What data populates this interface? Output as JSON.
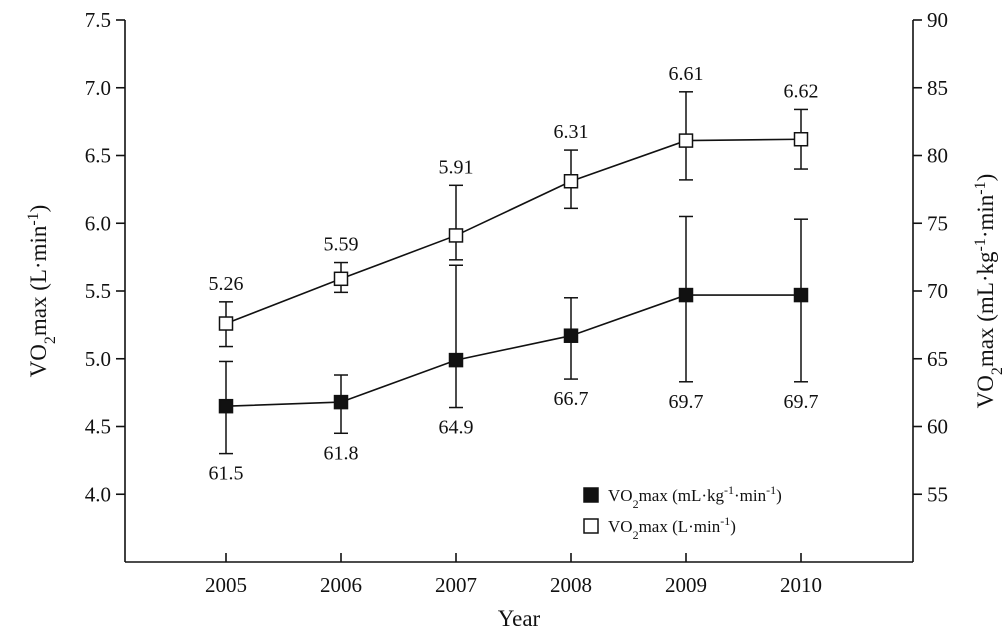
{
  "chart_data": {
    "type": "line",
    "xlabel": "Year",
    "ylabel_left": {
      "base": "VO",
      "sub": "2",
      "rest": "max (L·min",
      "sup": "-1",
      "end": ")"
    },
    "ylabel_right": {
      "base": "VO",
      "sub": "2",
      "rest": "max (mL·kg",
      "sup1": "-1",
      "mid": "·min",
      "sup2": "-1",
      "end": ")"
    },
    "x": [
      "2005",
      "2006",
      "2007",
      "2008",
      "2009",
      "2010"
    ],
    "ylim_left": [
      3.5,
      7.5
    ],
    "ylim_right": [
      50,
      90
    ],
    "yticks_left": [
      "4.0",
      "4.5",
      "5.0",
      "5.5",
      "6.0",
      "6.5",
      "7.0",
      "7.5"
    ],
    "yticks_right": [
      "55",
      "60",
      "65",
      "70",
      "75",
      "80",
      "85",
      "90"
    ],
    "grid": false,
    "legend_position": "bottom-right",
    "series": [
      {
        "id": "relative",
        "name": {
          "base": "VO",
          "sub": "2",
          "rest": "max (mL·kg",
          "sup1": "-1",
          "mid": "·min",
          "sup2": "-1",
          "end": ")"
        },
        "axis": "right",
        "marker": "filled-square",
        "values": [
          61.5,
          61.8,
          64.9,
          66.7,
          69.7,
          69.7
        ],
        "error_low": [
          58.0,
          59.5,
          61.4,
          63.5,
          63.3,
          63.3
        ],
        "error_high": [
          64.8,
          63.8,
          71.9,
          69.5,
          75.5,
          75.3
        ],
        "labels": [
          "61.5",
          "61.8",
          "64.9",
          "66.7",
          "69.7",
          "69.7"
        ],
        "label_position": "below"
      },
      {
        "id": "absolute",
        "name": {
          "base": "VO",
          "sub": "2",
          "rest": "max (L·min",
          "sup": "-1",
          "end": ")"
        },
        "axis": "left",
        "marker": "open-square",
        "values": [
          5.26,
          5.59,
          5.91,
          6.31,
          6.61,
          6.62
        ],
        "error_low": [
          5.09,
          5.49,
          5.73,
          6.11,
          6.32,
          6.4
        ],
        "error_high": [
          5.42,
          5.71,
          6.28,
          6.54,
          6.97,
          6.84
        ],
        "labels": [
          "5.26",
          "5.59",
          "5.91",
          "6.31",
          "6.61",
          "6.62"
        ],
        "label_position": "above"
      }
    ]
  }
}
